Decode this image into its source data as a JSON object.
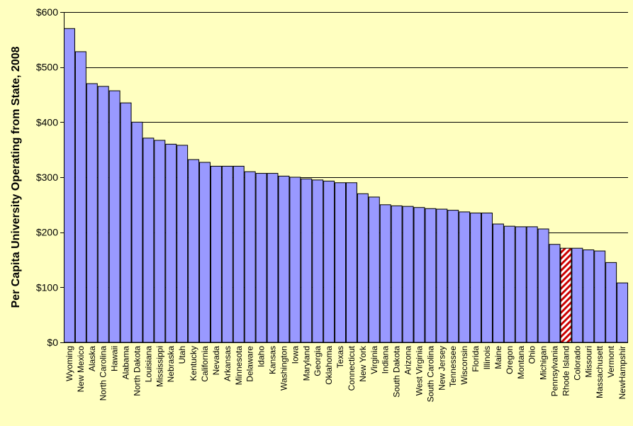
{
  "chart_data": {
    "type": "bar",
    "title": "",
    "xlabel": "",
    "ylabel": "Per Capita University Operating from State, 2008",
    "ylim": [
      0,
      600
    ],
    "y_ticks": [
      0,
      100,
      200,
      300,
      400,
      500,
      600
    ],
    "y_tick_labels": [
      "$0",
      "$100",
      "$200",
      "$300",
      "$400",
      "$500",
      "$600"
    ],
    "grid": true,
    "categories": [
      "Wyoming",
      "New Mexico",
      "Alaska",
      "North Carolina",
      "Hawaii",
      "Alabama",
      "North Dakota",
      "Louisiana",
      "Mississippi",
      "Nebraska",
      "Utah",
      "Kentucky",
      "California",
      "Nevada",
      "Arkansas",
      "Minnesota",
      "Delaware",
      "Idaho",
      "Kansas",
      "Washington",
      "Iowa",
      "Maryland",
      "Georgia",
      "Oklahoma",
      "Texas",
      "Connecticut",
      "New York",
      "Virginia",
      "Indiana",
      "South Dakota",
      "Arizona",
      "West Virginia",
      "South Carolina",
      "New Jersey",
      "Tennessee",
      "Wisconsin",
      "Florida",
      "Illinois",
      "Maine",
      "Oregon",
      "Montana",
      "Ohio",
      "Michigan",
      "Pennsylvania",
      "Rhode Island",
      "Colorado",
      "Missouri",
      "Massachusett",
      "Vermont",
      "NewHampshir"
    ],
    "values": [
      570,
      528,
      470,
      465,
      457,
      435,
      400,
      371,
      367,
      360,
      358,
      332,
      327,
      320,
      320,
      320,
      310,
      307,
      307,
      302,
      300,
      297,
      295,
      293,
      290,
      290,
      270,
      264,
      250,
      248,
      247,
      245,
      243,
      242,
      240,
      237,
      235,
      235,
      215,
      211,
      210,
      210,
      206,
      178,
      171,
      171,
      168,
      166,
      145,
      108
    ],
    "highlight": "Rhode Island",
    "colors": {
      "background": "#FFFFC0",
      "bar_fill": "#9999FF",
      "bar_stroke": "#000000",
      "highlight_stripe": "#CC0000",
      "highlight_base": "#FFFFFF",
      "gridline": "#000000"
    }
  }
}
